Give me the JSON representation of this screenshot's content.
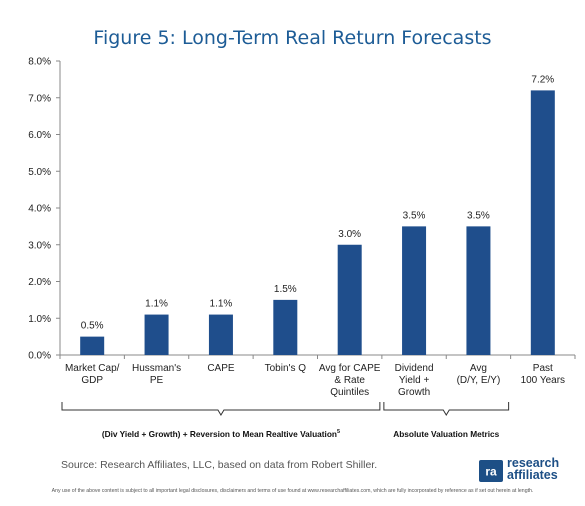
{
  "title": "Figure 5: Long-Term Real Return Forecasts",
  "source": "Source: Research Affiliates, LLC, based on data from Robert Shiller.",
  "disclaimer": "Any use of the above content is subject to all important legal disclosures, disclaimers and terms of use found at www.researchaffiliates.com, which are fully incorporated by reference as if set out herein at length.",
  "logo": {
    "line1": "research",
    "line2": "affiliates",
    "mark": "ra"
  },
  "colors": {
    "bar": "#1f4e8c",
    "title": "#1d5c96",
    "axis": "#888888"
  },
  "chart_data": {
    "type": "bar",
    "categories": [
      [
        "Market Cap/",
        "GDP"
      ],
      [
        "Hussman's",
        "PE"
      ],
      [
        "CAPE"
      ],
      [
        "Tobin's Q"
      ],
      [
        "Avg for CAPE",
        "& Rate",
        "Quintiles"
      ],
      [
        "Dividend",
        "Yield +",
        "Growth"
      ],
      [
        "Avg",
        "(D/Y, E/Y)"
      ],
      [
        "Past",
        "100 Years"
      ]
    ],
    "values": [
      0.5,
      1.1,
      1.1,
      1.5,
      3.0,
      3.5,
      3.5,
      7.2
    ],
    "data_labels": [
      "0.5%",
      "1.1%",
      "1.1%",
      "1.5%",
      "3.0%",
      "3.5%",
      "3.5%",
      "7.2%"
    ],
    "yticks": [
      "0.0%",
      "1.0%",
      "2.0%",
      "3.0%",
      "4.0%",
      "5.0%",
      "6.0%",
      "7.0%",
      "8.0%"
    ],
    "ylim": [
      0,
      8
    ],
    "grid": false,
    "groups": [
      {
        "label": "(Div Yield + Growth) + Reversion to Mean Realtive Valuation",
        "superscript": "5",
        "from": 0,
        "to": 4
      },
      {
        "label": "Absolute Valuation Metrics",
        "from": 5,
        "to": 6
      }
    ]
  }
}
